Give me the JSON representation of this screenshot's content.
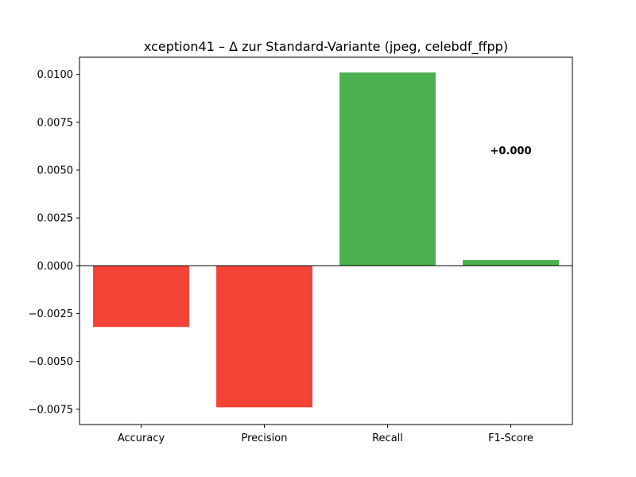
{
  "chart_data": {
    "type": "bar",
    "title": "xception41 – Δ zur Standard-Variante (jpeg, celebdf_ffpp)",
    "xlabel": "",
    "ylabel": "",
    "categories": [
      "Accuracy",
      "Precision",
      "Recall",
      "F1-Score"
    ],
    "values": [
      -0.0032,
      -0.0074,
      0.0101,
      0.0003
    ],
    "ylim": [
      -0.0083,
      0.0109
    ],
    "yticks": [
      -0.0075,
      -0.005,
      -0.0025,
      0.0,
      0.0025,
      0.005,
      0.0075,
      0.01
    ],
    "ytick_labels": [
      "−0.0075",
      "−0.0050",
      "−0.0025",
      "0.0000",
      "0.0025",
      "0.0050",
      "0.0075",
      "0.0100"
    ],
    "annotations": [
      {
        "category": "F1-Score",
        "text": "+0.000",
        "y": 0.0055
      }
    ],
    "zero_line": true,
    "grid": false,
    "colors": {
      "positive": "#4caf50",
      "negative": "#f44336"
    }
  }
}
